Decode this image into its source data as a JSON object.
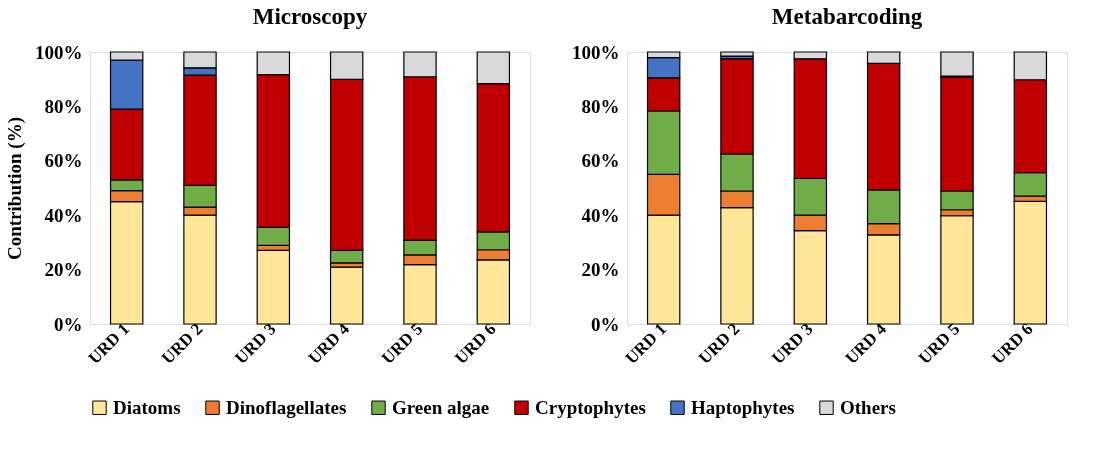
{
  "chart_data": [
    {
      "type": "bar",
      "title": "Microscopy",
      "ylabel": "Contribution (%)",
      "stacked": true,
      "legend": "bottom",
      "grid": false,
      "categories": [
        "URD 1",
        "URD 2",
        "URD 3",
        "URD 4",
        "URD 5",
        "URD 6"
      ],
      "ylim": [
        0,
        100
      ],
      "yticks": [
        {
          "value": 0,
          "label": "0%"
        },
        {
          "value": 20,
          "label": "20%"
        },
        {
          "value": 40,
          "label": "40%"
        },
        {
          "value": 60,
          "label": "60%"
        },
        {
          "value": 80,
          "label": "80%"
        },
        {
          "value": 100,
          "label": "100%"
        }
      ],
      "series": [
        {
          "name": "Diatoms",
          "color": "#ffe699",
          "values": [
            45,
            40,
            27.1,
            20.9,
            21.8,
            23.6
          ]
        },
        {
          "name": "Dinoflagellates",
          "color": "#ed7d31",
          "values": [
            4,
            3,
            1.8,
            1.6,
            3.6,
            3.7
          ]
        },
        {
          "name": "Green algae",
          "color": "#70ad47",
          "values": [
            4,
            8,
            6.6,
            4.6,
            5.4,
            6.6
          ]
        },
        {
          "name": "Cryptophytes",
          "color": "#c00000",
          "values": [
            26,
            40.5,
            56.2,
            62.8,
            60.1,
            54.5
          ]
        },
        {
          "name": "Haptophytes",
          "color": "#4472c4",
          "values": [
            18,
            2.7,
            null,
            0,
            null,
            0
          ]
        },
        {
          "name": "Others",
          "color": "#d9d9d9",
          "values": [
            3,
            5.8,
            8.3,
            10.1,
            9.1,
            11.6
          ]
        }
      ]
    },
    {
      "type": "bar",
      "title": "Metabarcoding",
      "stacked": true,
      "legend": "bottom",
      "grid": false,
      "categories": [
        "URD 1",
        "URD 2",
        "URD 3",
        "URD 4",
        "URD 5",
        "URD 6"
      ],
      "ylim": [
        0,
        100
      ],
      "yticks": [
        {
          "value": 0,
          "label": "0%"
        },
        {
          "value": 20,
          "label": "20%"
        },
        {
          "value": 40,
          "label": "40%"
        },
        {
          "value": 60,
          "label": "60%"
        },
        {
          "value": 80,
          "label": "80%"
        },
        {
          "value": 100,
          "label": "100%"
        }
      ],
      "series": [
        {
          "name": "Diatoms",
          "color": "#ffe699",
          "values": [
            40,
            42.8,
            34.3,
            32.8,
            39.8,
            45.1
          ]
        },
        {
          "name": "Dinoflagellates",
          "color": "#ed7d31",
          "values": [
            15,
            6.1,
            5.7,
            4.1,
            2.2,
            1.9
          ]
        },
        {
          "name": "Green algae",
          "color": "#70ad47",
          "values": [
            23.3,
            13.6,
            13.5,
            12.4,
            6.9,
            8.6
          ]
        },
        {
          "name": "Cryptophytes",
          "color": "#c00000",
          "values": [
            12.2,
            35,
            44,
            46.5,
            41.9,
            34.2
          ]
        },
        {
          "name": "Haptophytes",
          "color": "#4472c4",
          "values": [
            7.4,
            1,
            null,
            0,
            0.3,
            0
          ]
        },
        {
          "name": "Others",
          "color": "#d9d9d9",
          "values": [
            2.1,
            1.5,
            2.5,
            4.2,
            8.9,
            10.2
          ]
        }
      ]
    }
  ]
}
